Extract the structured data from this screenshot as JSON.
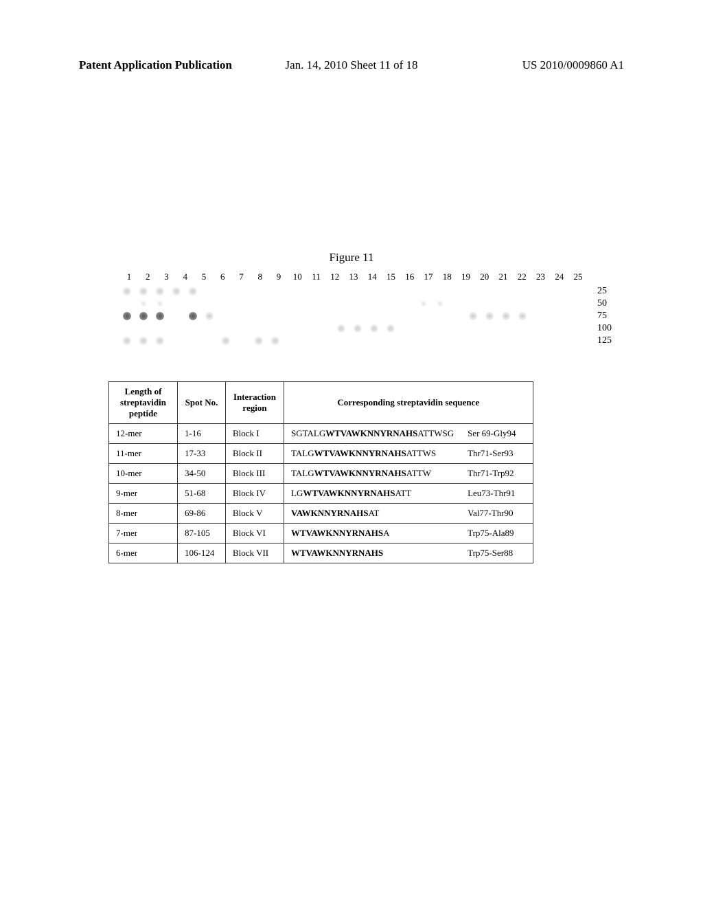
{
  "header": {
    "left": "Patent Application Publication",
    "center": "Jan. 14, 2010  Sheet 11 of 18",
    "right": "US 2010/0009860 A1"
  },
  "figure_title": "Figure 11",
  "spot_array": {
    "columns": [
      "1",
      "2",
      "3",
      "4",
      "5",
      "6",
      "7",
      "8",
      "9",
      "10",
      "11",
      "12",
      "13",
      "14",
      "15",
      "16",
      "17",
      "18",
      "19",
      "20",
      "21",
      "22",
      "23",
      "24",
      "25"
    ],
    "row_labels": [
      "25",
      "50",
      "75",
      "100",
      "125"
    ],
    "rows": [
      {
        "spots": [
          "light",
          "light",
          "light",
          "light",
          "light",
          "",
          "",
          "",
          "",
          "",
          "",
          "",
          "",
          "",
          "",
          "",
          "",
          "",
          "",
          "",
          "",
          "",
          "",
          "",
          ""
        ]
      },
      {
        "spots": [
          "",
          "faint",
          "faint",
          "",
          "",
          "",
          "",
          "",
          "",
          "",
          "",
          "",
          "",
          "",
          "",
          "",
          "",
          "",
          "faint",
          "faint",
          "",
          "",
          "",
          "",
          ""
        ]
      },
      {
        "spots": [
          "dark",
          "dark",
          "dark",
          "",
          "dark",
          "light",
          "",
          "",
          "",
          "",
          "",
          "",
          "",
          "",
          "",
          "",
          "",
          "",
          "",
          "",
          "",
          "light",
          "light",
          "light",
          "light"
        ]
      },
      {
        "spots": [
          "",
          "",
          "",
          "",
          "",
          "",
          "",
          "",
          "",
          "",
          "",
          "",
          "",
          "light",
          "light",
          "light",
          "light",
          "",
          "",
          "",
          "",
          "",
          "",
          "",
          ""
        ]
      },
      {
        "spots": [
          "light",
          "light",
          "light",
          "",
          "",
          "",
          "light",
          "",
          "light",
          "light",
          "",
          "",
          "",
          "",
          "",
          "",
          "",
          "",
          "",
          "",
          "",
          "",
          "",
          "",
          ""
        ]
      }
    ]
  },
  "table": {
    "headers": [
      "Length of streptavidin peptide",
      "Spot No.",
      "Interaction region",
      "Corresponding streptavidin sequence"
    ],
    "rows": [
      {
        "length": "12-mer",
        "spot": "1-16",
        "block": "Block I",
        "seq_pre": "SGTALG",
        "seq_bold": "WTVAWKNNYRNAHS",
        "seq_post": "ATTWSG",
        "residues": "Ser 69-Gly94"
      },
      {
        "length": "11-mer",
        "spot": "17-33",
        "block": "Block II",
        "seq_pre": "TALG",
        "seq_bold": "WTVAWKNNYRNAHS",
        "seq_post": "ATTWS",
        "residues": "Thr71-Ser93"
      },
      {
        "length": "10-mer",
        "spot": "34-50",
        "block": "Block III",
        "seq_pre": "TALG",
        "seq_bold": "WTVAWKNNYRNAHS",
        "seq_post": "ATTW",
        "residues": "Thr71-Trp92"
      },
      {
        "length": "9-mer",
        "spot": "51-68",
        "block": "Block IV",
        "seq_pre": "LG",
        "seq_bold": "WTVAWKNNYRNAHS",
        "seq_post": "ATT",
        "residues": "Leu73-Thr91"
      },
      {
        "length": "8-mer",
        "spot": "69-86",
        "block": "Block V",
        "seq_pre": "",
        "seq_bold": "VAWKNNYRNAHS",
        "seq_post": "AT",
        "residues": "Val77-Thr90"
      },
      {
        "length": "7-mer",
        "spot": "87-105",
        "block": "Block VI",
        "seq_pre": "",
        "seq_bold": "WTVAWKNNYRNAHS",
        "seq_post": "A",
        "residues": "Trp75-Ala89"
      },
      {
        "length": "6-mer",
        "spot": "106-124",
        "block": "Block VII",
        "seq_pre": "",
        "seq_bold": "WTVAWKNNYRNAHS",
        "seq_post": "",
        "residues": "Trp75-Ser88"
      }
    ]
  }
}
